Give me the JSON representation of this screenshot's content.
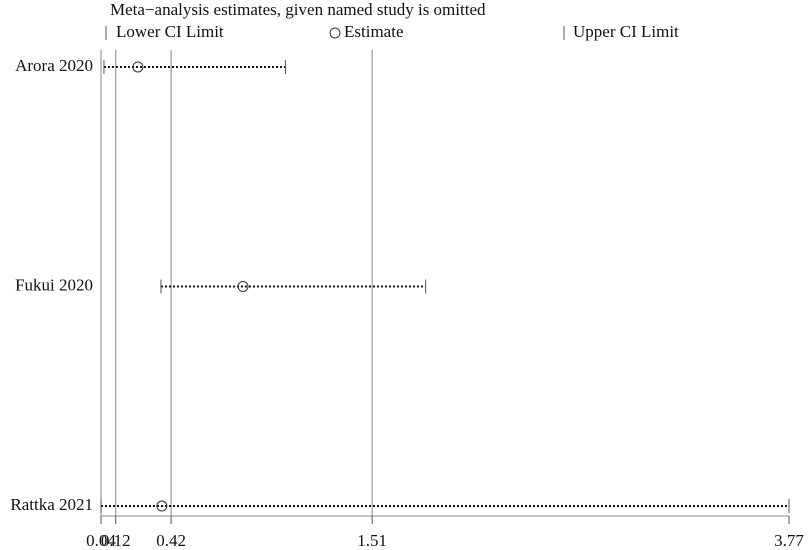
{
  "chart_data": {
    "type": "forest",
    "title": "Meta−analysis estimates, given named study is omitted",
    "legend": {
      "lower": "Lower CI Limit",
      "estimate": "Estimate",
      "upper": "Upper CI Limit"
    },
    "categories": [
      "Arora 2020",
      "Fukui 2020",
      "Rattka 2021"
    ],
    "lower": [
      0.056,
      0.365,
      0.04
    ],
    "estimate": [
      0.24,
      0.81,
      0.37
    ],
    "upper": [
      1.04,
      1.8,
      3.77
    ],
    "reference_lines": [
      0.12,
      0.42,
      1.51
    ],
    "xlim": [
      0.04,
      3.77
    ],
    "xticks": [
      0.04,
      0.12,
      0.42,
      1.51,
      3.77
    ]
  }
}
